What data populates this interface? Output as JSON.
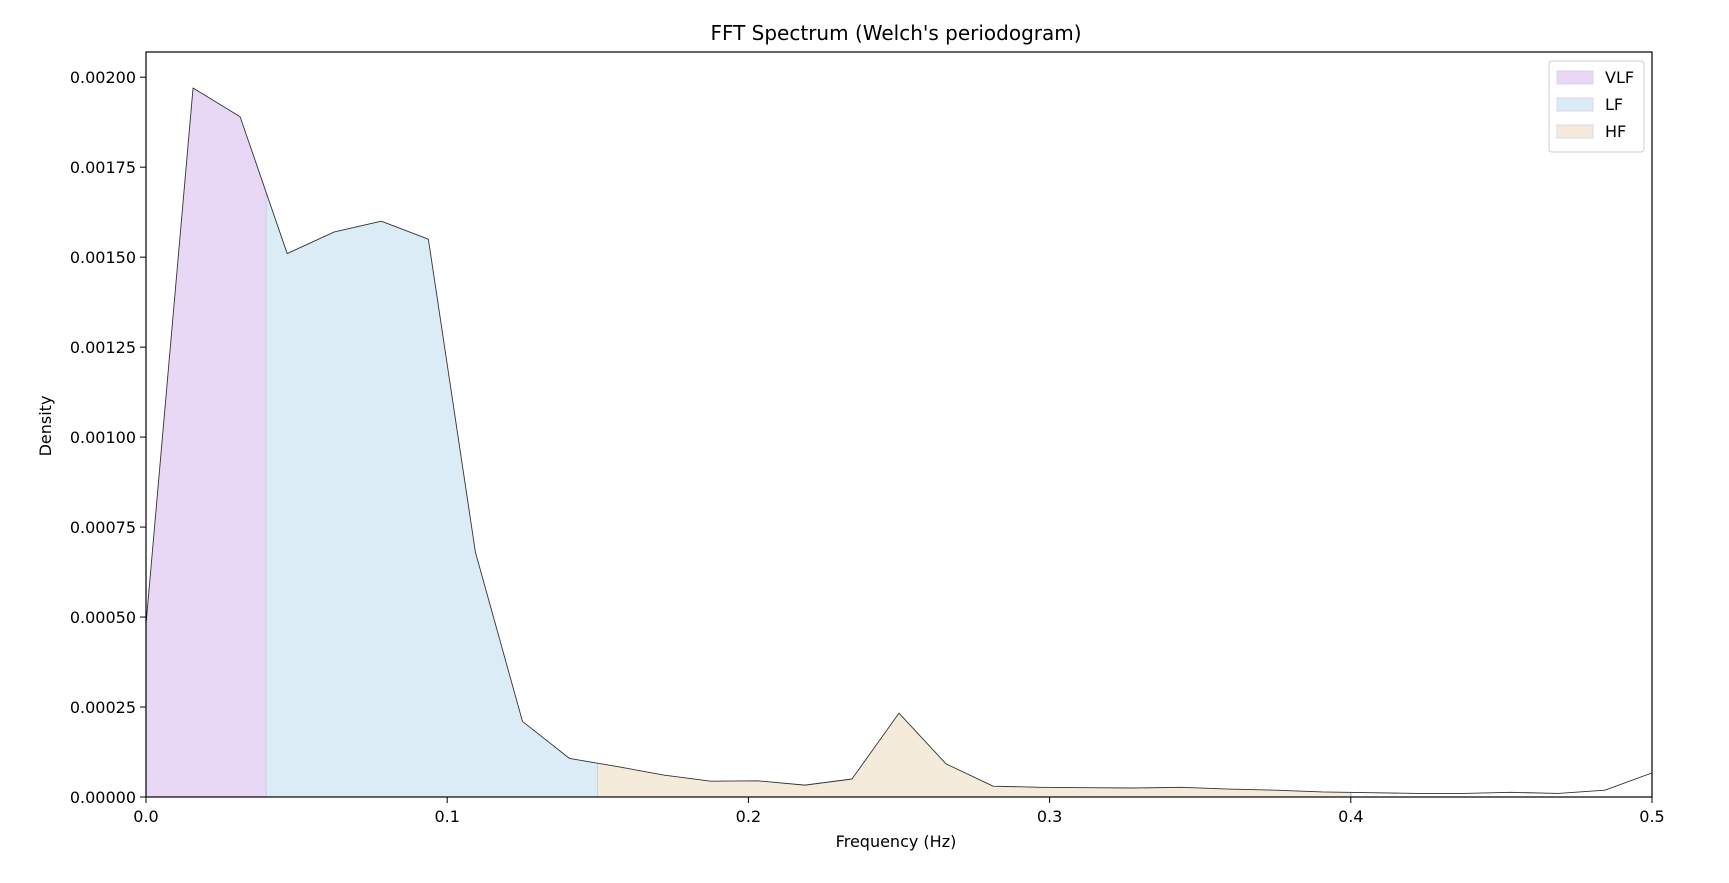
{
  "chart_data": {
    "type": "area",
    "title": "FFT Spectrum (Welch's periodogram)",
    "xlabel": "Frequency (Hz)",
    "ylabel": "Density",
    "xlim": [
      0,
      0.5
    ],
    "ylim": [
      0,
      0.00207
    ],
    "xticks": [
      0.0,
      0.1,
      0.2,
      0.3,
      0.4,
      0.5
    ],
    "xtick_labels": [
      "0.0",
      "0.1",
      "0.2",
      "0.3",
      "0.4",
      "0.5"
    ],
    "yticks": [
      0,
      0.00025,
      0.0005,
      0.00075,
      0.001,
      0.00125,
      0.0015,
      0.00175,
      0.002
    ],
    "ytick_labels": [
      "0.00000",
      "0.00025",
      "0.00050",
      "0.00075",
      "0.00100",
      "0.00125",
      "0.00150",
      "0.00175",
      "0.00200"
    ],
    "grid": false,
    "legend_position": "top-right",
    "x": [
      0.0,
      0.015625,
      0.03125,
      0.046875,
      0.0625,
      0.078125,
      0.09375,
      0.109375,
      0.125,
      0.140625,
      0.15625,
      0.171875,
      0.1875,
      0.203125,
      0.21875,
      0.234375,
      0.25,
      0.265625,
      0.28125,
      0.296875,
      0.3125,
      0.328125,
      0.34375,
      0.359375,
      0.375,
      0.390625,
      0.40625,
      0.421875,
      0.4375,
      0.453125,
      0.46875,
      0.484375,
      0.5
    ],
    "y": [
      0.00048,
      0.00197,
      0.00189,
      0.00151,
      0.00157,
      0.0016,
      0.00155,
      0.00068,
      0.00021,
      0.000107,
      8.5e-05,
      6.1e-05,
      4.4e-05,
      4.5e-05,
      3.3e-05,
      5e-05,
      0.000233,
      9.2e-05,
      3e-05,
      2.7e-05,
      2.6e-05,
      2.5e-05,
      2.7e-05,
      2.2e-05,
      1.9e-05,
      1.4e-05,
      1.2e-05,
      1e-05,
      1e-05,
      1.3e-05,
      1e-05,
      1.9e-05,
      6.7e-05
    ],
    "bands": [
      {
        "name": "VLF",
        "range": [
          0.0,
          0.04
        ],
        "color": "#e8d8f5"
      },
      {
        "name": "LF",
        "range": [
          0.04,
          0.15
        ],
        "color": "#dbecf6"
      },
      {
        "name": "HF",
        "range": [
          0.15,
          0.4
        ],
        "color": "#f5ebdb"
      }
    ],
    "line_color": "#333333"
  }
}
